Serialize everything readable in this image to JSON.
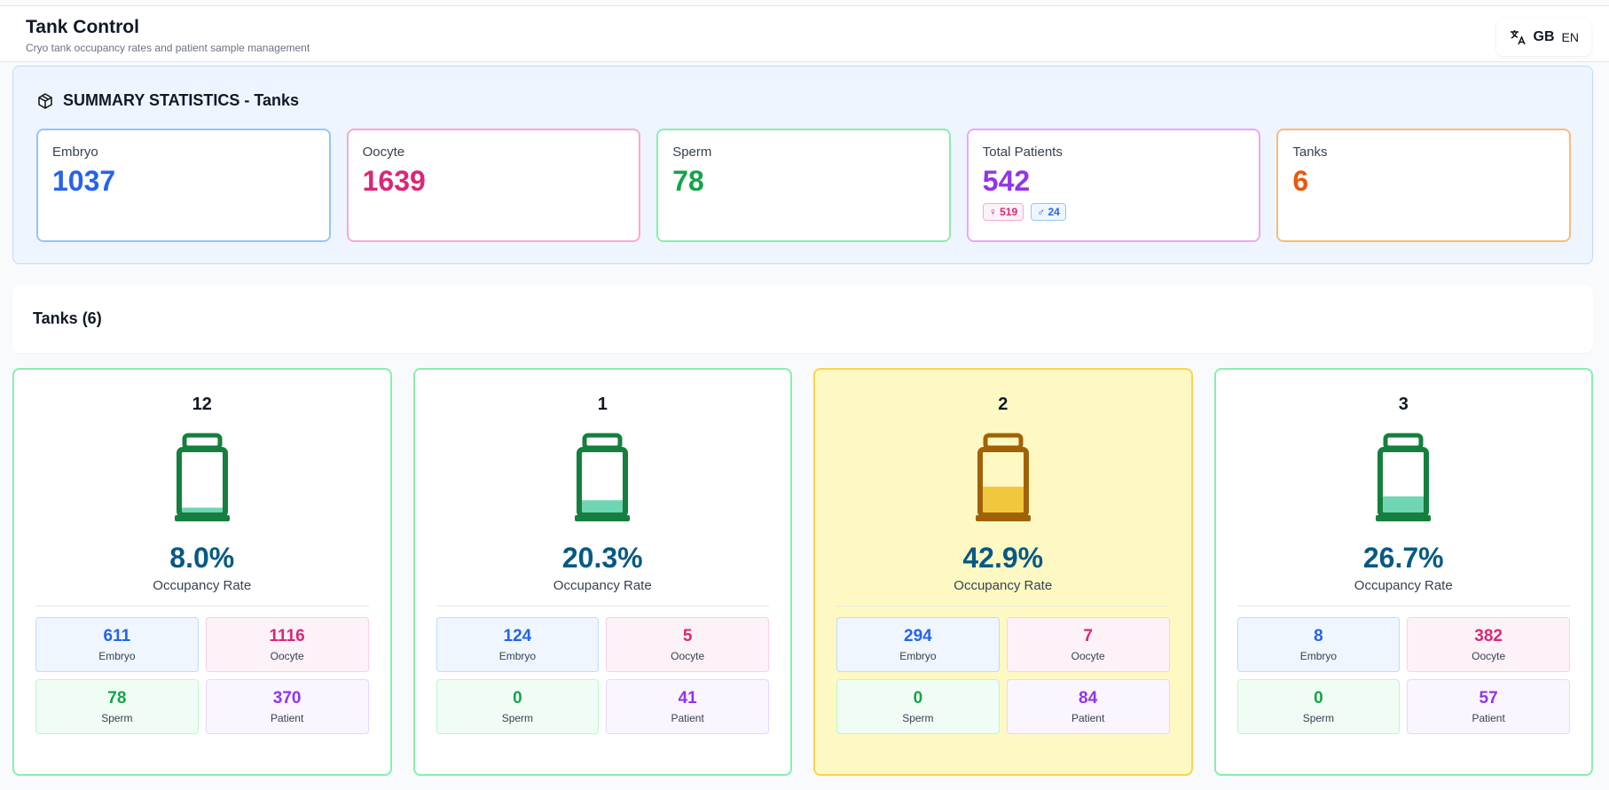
{
  "header": {
    "title": "Tank Control",
    "subtitle": "Cryo tank occupancy rates and patient sample management",
    "region": "GB",
    "language": "EN"
  },
  "summary": {
    "title": "SUMMARY STATISTICS - Tanks",
    "stats": [
      {
        "label": "Embryo",
        "value": "1037",
        "color": "#2563eb",
        "border": "#93c5fd"
      },
      {
        "label": "Oocyte",
        "value": "1639",
        "color": "#db2777",
        "border": "#f9a8d4"
      },
      {
        "label": "Sperm",
        "value": "78",
        "color": "#16a34a",
        "border": "#86efac"
      },
      {
        "label": "Total Patients",
        "value": "542",
        "color": "#9333ea",
        "border": "#e9a8f5",
        "female": "519",
        "male": "24"
      },
      {
        "label": "Tanks",
        "value": "6",
        "color": "#ea580c",
        "border": "#fdba74"
      }
    ]
  },
  "tanks_section": {
    "title": "Tanks (6)"
  },
  "tanks": [
    {
      "name": "12",
      "occupancy": "8.0%",
      "occupancy_label": "Occupancy Rate",
      "color": "#15803d",
      "counts": [
        {
          "value": "611",
          "label": "Embryo"
        },
        {
          "value": "1116",
          "label": "Oocyte"
        },
        {
          "value": "78",
          "label": "Sperm"
        },
        {
          "value": "370",
          "label": "Patient"
        }
      ]
    },
    {
      "name": "1",
      "occupancy": "20.3%",
      "occupancy_label": "Occupancy Rate",
      "color": "#15803d",
      "counts": [
        {
          "value": "124",
          "label": "Embryo"
        },
        {
          "value": "5",
          "label": "Oocyte"
        },
        {
          "value": "0",
          "label": "Sperm"
        },
        {
          "value": "41",
          "label": "Patient"
        }
      ]
    },
    {
      "name": "2",
      "occupancy": "42.9%",
      "occupancy_label": "Occupancy Rate",
      "color": "#a16207",
      "counts": [
        {
          "value": "294",
          "label": "Embryo"
        },
        {
          "value": "7",
          "label": "Oocyte"
        },
        {
          "value": "0",
          "label": "Sperm"
        },
        {
          "value": "84",
          "label": "Patient"
        }
      ]
    },
    {
      "name": "3",
      "occupancy": "26.7%",
      "occupancy_label": "Occupancy Rate",
      "color": "#15803d",
      "counts": [
        {
          "value": "8",
          "label": "Embryo"
        },
        {
          "value": "382",
          "label": "Oocyte"
        },
        {
          "value": "0",
          "label": "Sperm"
        },
        {
          "value": "57",
          "label": "Patient"
        }
      ]
    }
  ]
}
